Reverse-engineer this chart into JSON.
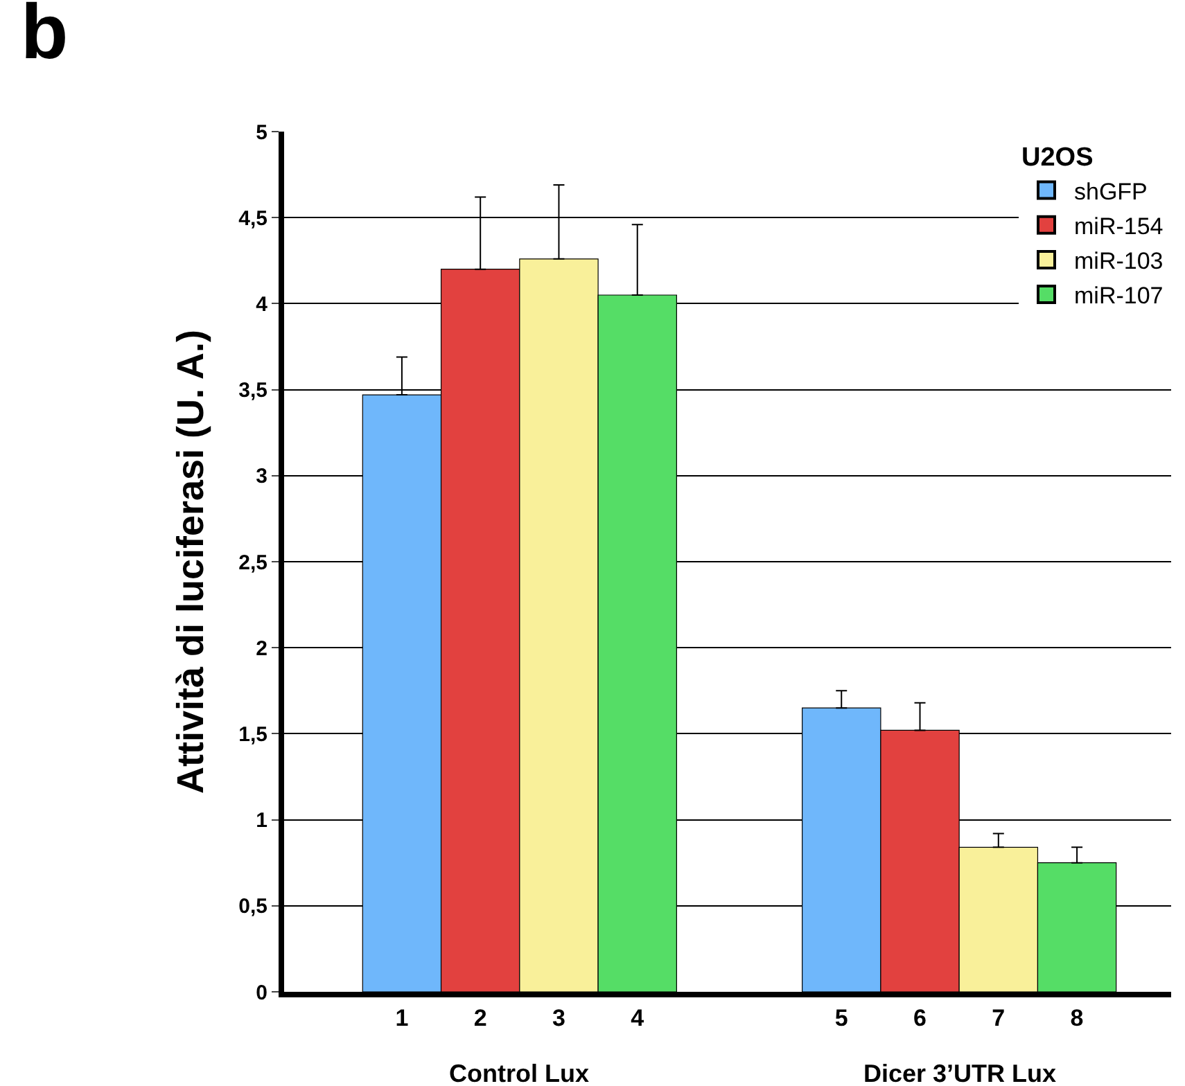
{
  "chart_data": {
    "type": "bar",
    "title": "b",
    "ylabel": "Attività di luciferasi (U. A.)",
    "legend_title": "U2OS",
    "categories": [
      "1",
      "2",
      "3",
      "4",
      "5",
      "6",
      "7",
      "8"
    ],
    "series": [
      {
        "name": "shGFP",
        "color": "#6fb7fb",
        "values": [
          3.47,
          null,
          null,
          null,
          1.65,
          null,
          null,
          null
        ],
        "errors": [
          [
            3.47,
            3.69
          ],
          null,
          null,
          null,
          [
            1.65,
            1.75
          ],
          null,
          null,
          null
        ]
      },
      {
        "name": "miR-154",
        "color": "#e2413f",
        "values": [
          null,
          4.2,
          null,
          null,
          null,
          1.52,
          null,
          null
        ],
        "errors": [
          null,
          [
            4.2,
            4.62
          ],
          null,
          null,
          null,
          [
            1.52,
            1.68
          ],
          null,
          null
        ]
      },
      {
        "name": "miR-103",
        "color": "#f9f09a",
        "values": [
          null,
          null,
          4.26,
          null,
          null,
          null,
          0.84,
          null
        ],
        "errors": [
          null,
          null,
          [
            4.26,
            4.69
          ],
          null,
          null,
          null,
          [
            0.84,
            0.92
          ],
          null
        ]
      },
      {
        "name": "miR-107",
        "color": "#55dd66",
        "values": [
          null,
          null,
          null,
          4.05,
          null,
          null,
          null,
          0.75
        ],
        "errors": [
          null,
          null,
          null,
          [
            4.05,
            4.46
          ],
          null,
          null,
          null,
          [
            0.75,
            0.84
          ]
        ]
      }
    ],
    "annotations": [
      "Control Lux",
      "Dicer 3’UTR Lux"
    ],
    "ylim": [
      0,
      5
    ],
    "yticks": [
      0,
      {
        "value": 0.5,
        "label": "0,5"
      },
      1,
      {
        "value": 1.5,
        "label": "1,5"
      },
      2,
      {
        "value": 2.5,
        "label": "2,5"
      },
      3,
      {
        "value": 3.5,
        "label": "3,5"
      },
      4,
      {
        "value": 4.5,
        "label": "4,5"
      },
      5
    ],
    "grid": "y",
    "legend": "top right"
  }
}
